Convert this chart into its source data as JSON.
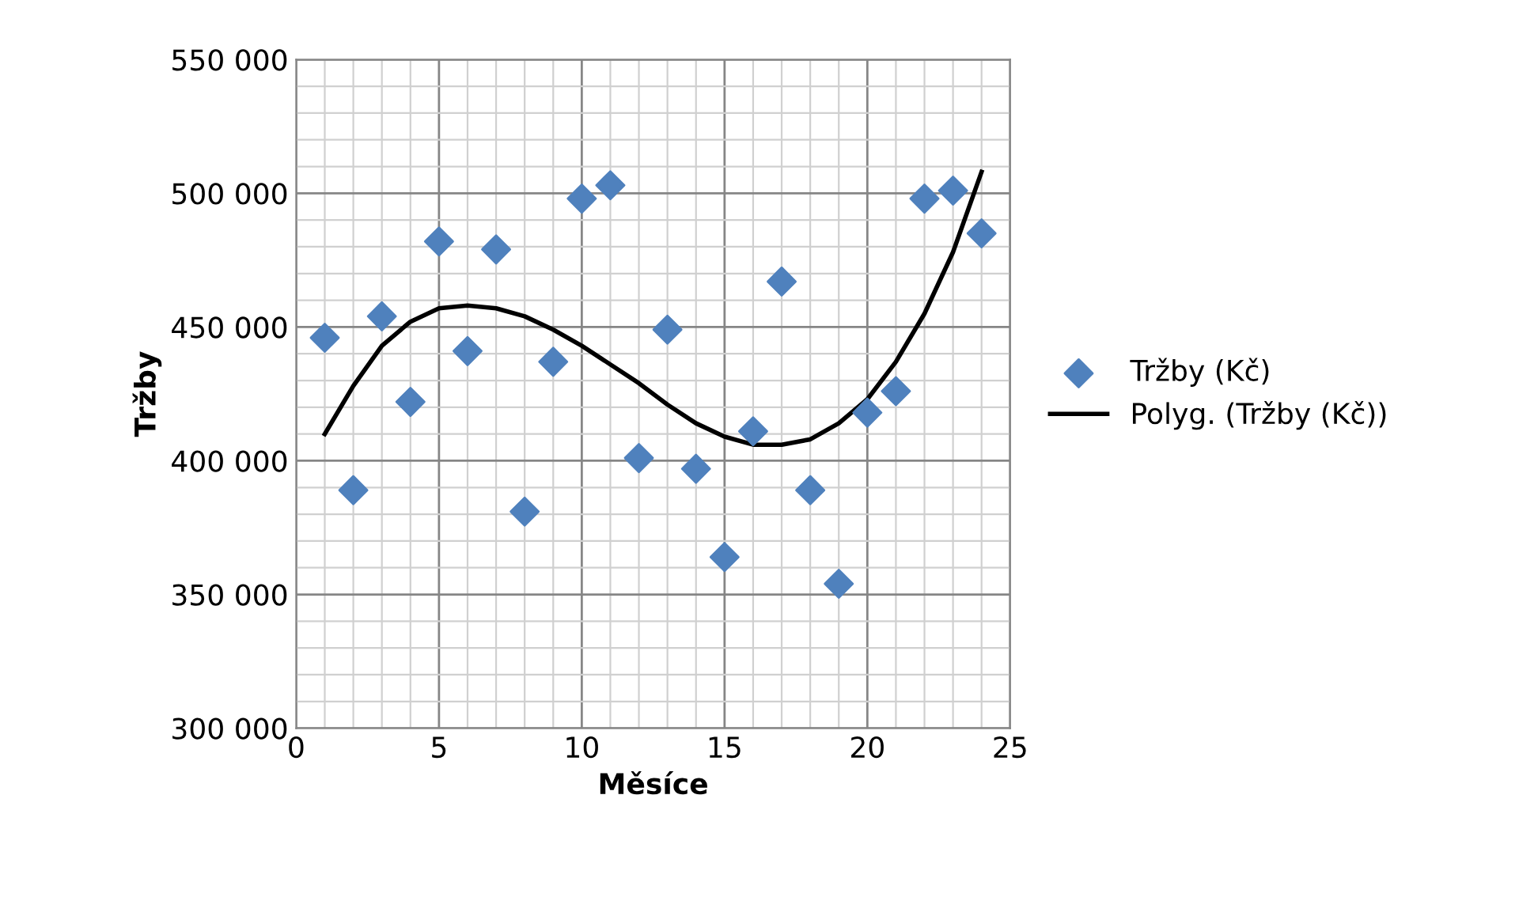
{
  "chart_data": {
    "type": "scatter",
    "xlabel": "Měsíce",
    "ylabel": "Tržby",
    "xlim": [
      0,
      25
    ],
    "xticks": [
      0,
      5,
      10,
      15,
      20,
      25
    ],
    "ylim": [
      300000,
      550000
    ],
    "yticks": [
      {
        "value": 300000,
        "label": "300 000"
      },
      {
        "value": 350000,
        "label": "350 000"
      },
      {
        "value": 400000,
        "label": "400 000"
      },
      {
        "value": 450000,
        "label": "450 000"
      },
      {
        "value": 500000,
        "label": "500 000"
      },
      {
        "value": 550000,
        "label": "550 000"
      }
    ],
    "grid": true,
    "legend": "right",
    "series": [
      {
        "name": "Tržby (Kč)",
        "marker": "diamond",
        "color": "#4f81bd",
        "x": [
          1,
          2,
          3,
          4,
          5,
          6,
          7,
          8,
          9,
          10,
          11,
          12,
          13,
          14,
          15,
          16,
          17,
          18,
          19,
          20,
          21,
          22,
          23,
          24
        ],
        "values": [
          446000,
          389000,
          454000,
          422000,
          482000,
          441000,
          479000,
          381000,
          437000,
          498000,
          503000,
          401000,
          449000,
          397000,
          364000,
          411000,
          467000,
          389000,
          354000,
          418000,
          426000,
          498000,
          501000,
          485000
        ]
      },
      {
        "name": "Polyg. (Tržby (Kč))",
        "type": "line",
        "marker": "none",
        "line_style": "solid",
        "color": "#000000",
        "x": [
          1,
          2,
          3,
          4,
          5,
          6,
          7,
          8,
          9,
          10,
          11,
          12,
          13,
          14,
          15,
          16,
          17,
          18,
          19,
          20,
          21,
          22,
          23,
          24
        ],
        "values": [
          410000,
          428000,
          443000,
          452000,
          457000,
          458000,
          457000,
          454000,
          449000,
          443000,
          436000,
          429000,
          421000,
          414000,
          409000,
          406000,
          406000,
          408000,
          414000,
          423000,
          437000,
          455000,
          478000,
          508000
        ]
      }
    ]
  }
}
